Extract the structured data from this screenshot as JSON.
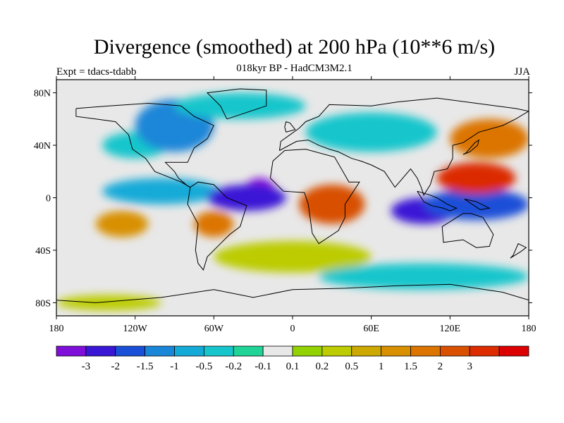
{
  "title": "Divergence (smoothed) at 200 hPa (10**6 m/s)",
  "subtitle": "018kyr BP - HadCM3M2.1",
  "experiment": "Expt = tdacs-tdabb",
  "season": "JJA",
  "map": {
    "lon_range": [
      -180,
      180
    ],
    "lat_range": [
      -90,
      90
    ],
    "lat_ticks": [
      "80N",
      "40N",
      "0",
      "40S",
      "80S"
    ],
    "lat_tick_values": [
      80,
      40,
      0,
      -40,
      -80
    ],
    "lon_ticks": [
      "180",
      "120W",
      "60W",
      "0",
      "60E",
      "120E",
      "180"
    ],
    "lon_tick_values": [
      -180,
      -120,
      -60,
      0,
      60,
      120,
      180
    ],
    "background_color": "#e8e8e8"
  },
  "colorbar": {
    "colors": [
      "#7f0fd8",
      "#3a16d6",
      "#1a50d8",
      "#1a86d8",
      "#13aad8",
      "#16c6cc",
      "#20d498",
      "#e8e8e8",
      "#92d200",
      "#bccc00",
      "#cca800",
      "#d89000",
      "#dc7400",
      "#d85000",
      "#dc2c00",
      "#dc0000"
    ],
    "labels": [
      "-3",
      "-2",
      "-1.5",
      "-1",
      "-0.5",
      "-0.2",
      "-0.1",
      "0.1",
      "0.2",
      "0.5",
      "1",
      "1.5",
      "2",
      "3"
    ]
  },
  "field_blobs": [
    {
      "lon": -100,
      "lat": 5,
      "rx": 45,
      "ry": 10,
      "level": 4
    },
    {
      "lon": -25,
      "lat": 5,
      "rx": 12,
      "ry": 10,
      "level": 0
    },
    {
      "lon": -35,
      "lat": 0,
      "rx": 30,
      "ry": 10,
      "level": 1
    },
    {
      "lon": 100,
      "lat": -10,
      "rx": 25,
      "ry": 10,
      "level": 1
    },
    {
      "lon": 140,
      "lat": -5,
      "rx": 40,
      "ry": 12,
      "level": 2
    },
    {
      "lon": 30,
      "lat": -5,
      "rx": 25,
      "ry": 15,
      "level": 13
    },
    {
      "lon": 140,
      "lat": 15,
      "rx": 30,
      "ry": 12,
      "level": 14
    },
    {
      "lon": -60,
      "lat": -20,
      "rx": 15,
      "ry": 10,
      "level": 12
    },
    {
      "lon": -130,
      "lat": -20,
      "rx": 20,
      "ry": 10,
      "level": 11
    },
    {
      "lon": 0,
      "lat": -45,
      "rx": 60,
      "ry": 12,
      "level": 9
    },
    {
      "lon": -120,
      "lat": 40,
      "rx": 25,
      "ry": 10,
      "level": 5
    },
    {
      "lon": -90,
      "lat": 55,
      "rx": 30,
      "ry": 20,
      "level": 3
    },
    {
      "lon": 60,
      "lat": 50,
      "rx": 50,
      "ry": 15,
      "level": 5
    },
    {
      "lon": 150,
      "lat": 45,
      "rx": 30,
      "ry": 15,
      "level": 12
    },
    {
      "lon": -40,
      "lat": 70,
      "rx": 50,
      "ry": 10,
      "level": 5
    },
    {
      "lon": 100,
      "lat": -60,
      "rx": 80,
      "ry": 10,
      "level": 5
    },
    {
      "lon": -140,
      "lat": -80,
      "rx": 40,
      "ry": 6,
      "level": 9
    }
  ]
}
